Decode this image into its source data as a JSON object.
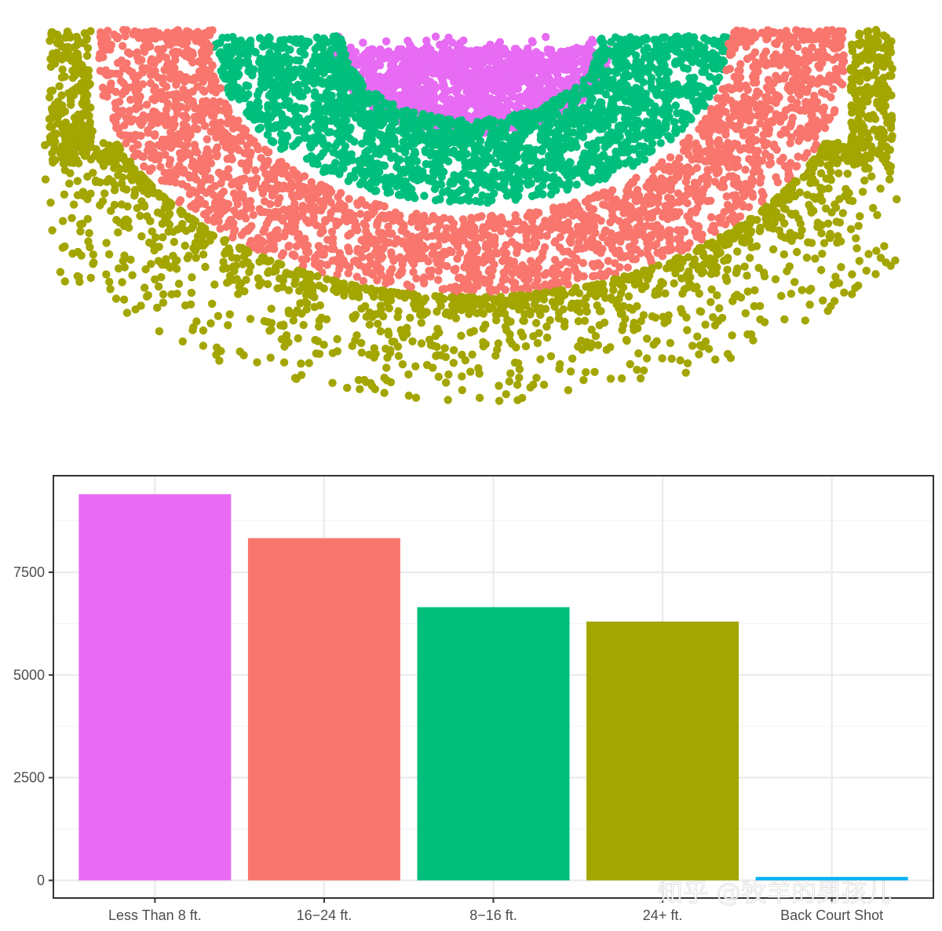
{
  "chart_data": [
    {
      "type": "scatter",
      "title": "",
      "xlabel": "",
      "ylabel": "",
      "axes_visible": false,
      "legend": "none",
      "description_of_marks": "shot locations colored by shot zone",
      "series": [
        {
          "name": "",
          "zone": "Less Than 8 ft.",
          "color": "#E76BF3",
          "r_min": 0,
          "r_max": 8
        },
        {
          "name": "",
          "zone": "8-16 ft.",
          "color": "#00BF7D",
          "r_min": 8,
          "r_max": 16
        },
        {
          "name": "",
          "zone": "16-24 ft.",
          "color": "#F8766D",
          "r_min": 16,
          "r_max": 23.5
        },
        {
          "name": "",
          "zone": "24+ ft.",
          "color": "#A3A500",
          "r_min": 23.5,
          "r_max": 27
        }
      ]
    },
    {
      "type": "bar",
      "title": "",
      "xlabel": "",
      "ylabel": "",
      "categories": [
        "Less Than 8 ft.",
        "16−24 ft.",
        "8−16 ft.",
        "24+ ft.",
        "Back Court Shot"
      ],
      "values": [
        9400,
        8330,
        6650,
        6300,
        83
      ],
      "colors": [
        "#E76BF3",
        "#F8766D",
        "#00BF7D",
        "#A3A500",
        "#00B0F6"
      ],
      "ylim": [
        -430,
        9850
      ],
      "yticks": [
        0,
        2500,
        5000,
        7500
      ],
      "ytick_labels": [
        "0",
        "2500",
        "5000",
        "7500"
      ],
      "grid": true,
      "legend": "none"
    }
  ],
  "watermark": {
    "text": "知乎 @牧羊的男孩儿"
  }
}
